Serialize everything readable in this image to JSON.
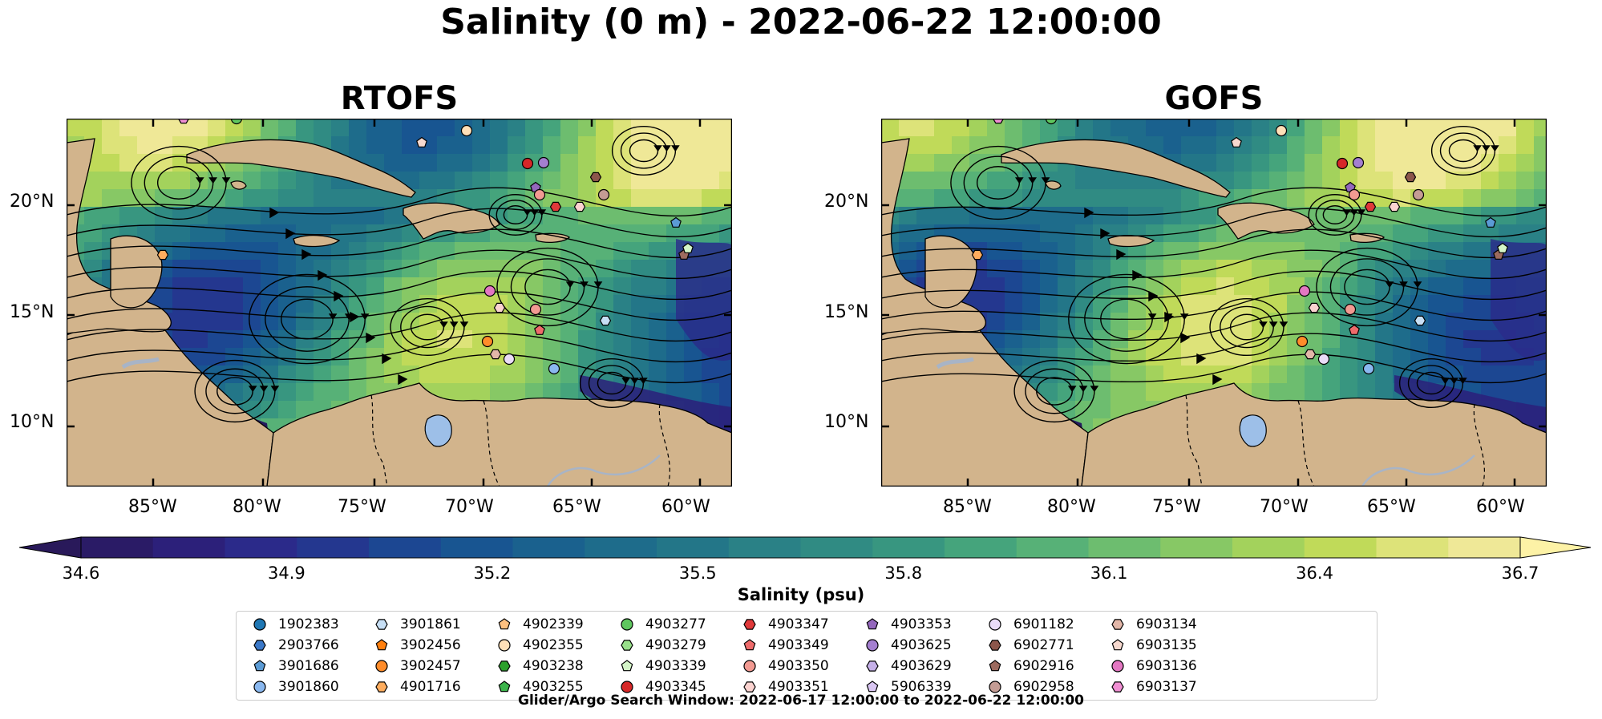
{
  "title": "Salinity (0 m) - 2022-06-22 12:00:00",
  "panels": [
    {
      "title": "RTOFS"
    },
    {
      "title": "GOFS"
    }
  ],
  "lat_labels": [
    "20°N",
    "15°N",
    "10°N"
  ],
  "lon_labels": [
    "85°W",
    "80°W",
    "75°W",
    "70°W",
    "65°W",
    "60°W"
  ],
  "colorbar": {
    "label": "Salinity (psu)",
    "ticks": [
      "34.6",
      "34.9",
      "35.2",
      "35.5",
      "35.8",
      "36.1",
      "36.4",
      "36.7"
    ],
    "colors": [
      "#2a1b66",
      "#2c207a",
      "#2b2a8a",
      "#24378f",
      "#1c4792",
      "#185591",
      "#1a618e",
      "#1e6c8b",
      "#237688",
      "#2a8186",
      "#308b83",
      "#389680",
      "#45a47c",
      "#57b177",
      "#6dbd6f",
      "#87c865",
      "#a3d25c",
      "#c0da59",
      "#dde379",
      "#efe897"
    ],
    "under_color": "#29195a",
    "over_color": "#fdf2a6"
  },
  "map_colors": {
    "land": "#d2b48c",
    "lake": "#9dbfe8",
    "river": "#a8b4c6",
    "deep": "#251b5e"
  },
  "legend": [
    {
      "id": "1902383",
      "marker": "circle",
      "color": "#1f77b4"
    },
    {
      "id": "2903766",
      "marker": "hexagon",
      "color": "#3a78c8"
    },
    {
      "id": "3901686",
      "marker": "pentagon",
      "color": "#5b9bd5"
    },
    {
      "id": "3901860",
      "marker": "circle",
      "color": "#8ab8ef"
    },
    {
      "id": "3901861",
      "marker": "hexagon",
      "color": "#c7dff5"
    },
    {
      "id": "3902456",
      "marker": "pentagon",
      "color": "#ff7f0e"
    },
    {
      "id": "3902457",
      "marker": "circle",
      "color": "#ff8c2a"
    },
    {
      "id": "4901716",
      "marker": "hexagon",
      "color": "#ffad5e"
    },
    {
      "id": "4902339",
      "marker": "pentagon",
      "color": "#ffc180"
    },
    {
      "id": "4902355",
      "marker": "circle",
      "color": "#ffe0b8"
    },
    {
      "id": "4903238",
      "marker": "hexagon",
      "color": "#2ca02c"
    },
    {
      "id": "4903255",
      "marker": "pentagon",
      "color": "#3cb44b"
    },
    {
      "id": "4903277",
      "marker": "circle",
      "color": "#5fc75f"
    },
    {
      "id": "4903279",
      "marker": "hexagon",
      "color": "#98df8a"
    },
    {
      "id": "4903339",
      "marker": "pentagon",
      "color": "#d4f5c8"
    },
    {
      "id": "4903345",
      "marker": "circle",
      "color": "#d62728"
    },
    {
      "id": "4903347",
      "marker": "hexagon",
      "color": "#e0393a"
    },
    {
      "id": "4903349",
      "marker": "pentagon",
      "color": "#ee6b6b"
    },
    {
      "id": "4903350",
      "marker": "circle",
      "color": "#f29a92"
    },
    {
      "id": "4903351",
      "marker": "hexagon",
      "color": "#fbd3d0"
    },
    {
      "id": "4903353",
      "marker": "pentagon",
      "color": "#9467bd"
    },
    {
      "id": "4903625",
      "marker": "circle",
      "color": "#a47fd0"
    },
    {
      "id": "4903629",
      "marker": "hexagon",
      "color": "#c5b0e8"
    },
    {
      "id": "5906339",
      "marker": "pentagon",
      "color": "#d9c6f2"
    },
    {
      "id": "6901182",
      "marker": "circle",
      "color": "#eadcf8"
    },
    {
      "id": "6902771",
      "marker": "hexagon",
      "color": "#8c564b"
    },
    {
      "id": "6902916",
      "marker": "pentagon",
      "color": "#9c6a5e"
    },
    {
      "id": "6902958",
      "marker": "circle",
      "color": "#c49c94"
    },
    {
      "id": "6903134",
      "marker": "hexagon",
      "color": "#e3b7a9"
    },
    {
      "id": "6903135",
      "marker": "pentagon",
      "color": "#f7d9cf"
    },
    {
      "id": "6903136",
      "marker": "circle",
      "color": "#e377c2"
    },
    {
      "id": "6903137",
      "marker": "hexagon",
      "color": "#f08fd3"
    }
  ],
  "search_window": "Glider/Argo Search Window: 2022-06-17 12:00:00 to 2022-06-22 12:00:00"
}
